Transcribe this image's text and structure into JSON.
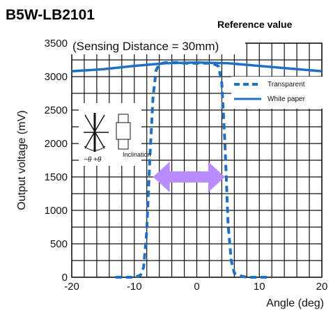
{
  "header": {
    "title": "B5W-LB2101",
    "subtitle": "Reference value"
  },
  "chart_data": {
    "type": "line",
    "xlabel": "Angle (deg)",
    "ylabel": "Output voltage (mV)",
    "xlim": [
      -20,
      20
    ],
    "ylim": [
      0,
      3500
    ],
    "x_ticks": [
      -20,
      -10,
      0,
      10,
      20
    ],
    "y_ticks": [
      0,
      500,
      1000,
      1500,
      2000,
      2500,
      3000,
      3500
    ],
    "grid": true,
    "legend_position": "right",
    "annotation": "(Sensing Distance = 30mm)",
    "inset_label": "Inclination",
    "inset_angle_label": "−θ +θ",
    "series": [
      {
        "name": "Transparent",
        "style": "dashed",
        "color": "#1f6fc5",
        "x": [
          -13,
          -12,
          -11,
          -10,
          -9,
          -8.5,
          -8,
          -7.5,
          -7,
          -6.5,
          -6,
          -5.5,
          -5,
          -4,
          -3,
          -2,
          -1,
          0,
          1,
          2,
          3,
          3.5,
          4,
          4.5,
          5,
          5.5,
          6,
          7,
          8,
          9,
          10,
          11,
          12
        ],
        "y": [
          0,
          0,
          0,
          0,
          30,
          150,
          700,
          1800,
          2700,
          3100,
          3180,
          3200,
          3210,
          3210,
          3210,
          3200,
          3200,
          3200,
          3200,
          3200,
          3180,
          3150,
          2900,
          2000,
          800,
          250,
          60,
          20,
          0,
          0,
          0,
          0,
          0
        ]
      },
      {
        "name": "White paper",
        "style": "solid",
        "color": "#1f6fc5",
        "x": [
          -20,
          -15,
          -10,
          -5,
          0,
          5,
          10,
          15,
          20
        ],
        "y": [
          3080,
          3110,
          3160,
          3200,
          3210,
          3200,
          3160,
          3120,
          3080
        ]
      }
    ],
    "arrow": {
      "x_from": -7,
      "x_to": 4.5,
      "y": 1500,
      "color": "#b98cff"
    }
  }
}
